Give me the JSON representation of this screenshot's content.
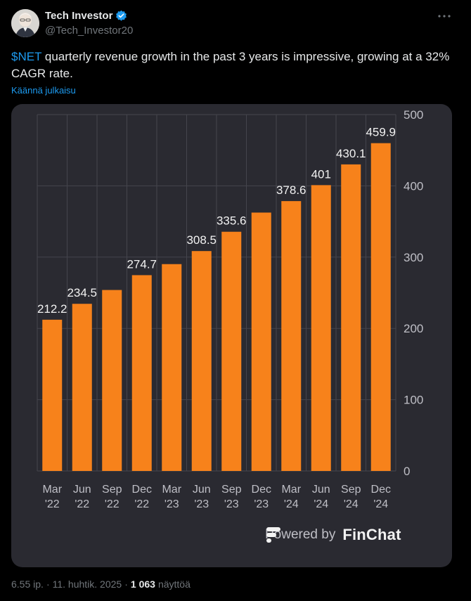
{
  "author": {
    "name": "Tech Investor",
    "handle": "@Tech_Investor20",
    "verified": true,
    "avatar_icon": "person-avatar-icon"
  },
  "tweet": {
    "cashtag": "$NET",
    "text_rest": " quarterly revenue growth in the past 3 years is impressive, growing at a 32% CAGR rate.",
    "translate_label": "Käännä julkaisu"
  },
  "chart_data": {
    "type": "bar",
    "categories": [
      "Mar '22",
      "Jun '22",
      "Sep '22",
      "Dec '22",
      "Mar '23",
      "Jun '23",
      "Sep '23",
      "Dec '23",
      "Mar '24",
      "Jun '24",
      "Sep '24",
      "Dec '24"
    ],
    "categories_lines": [
      [
        "Mar",
        "'22"
      ],
      [
        "Jun",
        "'22"
      ],
      [
        "Sep",
        "'22"
      ],
      [
        "Dec",
        "'22"
      ],
      [
        "Mar",
        "'23"
      ],
      [
        "Jun",
        "'23"
      ],
      [
        "Sep",
        "'23"
      ],
      [
        "Dec",
        "'23"
      ],
      [
        "Mar",
        "'24"
      ],
      [
        "Jun",
        "'24"
      ],
      [
        "Sep",
        "'24"
      ],
      [
        "Dec",
        "'24"
      ]
    ],
    "values": [
      212.2,
      234.5,
      253.9,
      274.7,
      290.2,
      308.5,
      335.6,
      362.5,
      378.6,
      401,
      430.1,
      459.9
    ],
    "labels": [
      "212.2",
      "234.5",
      "",
      "274.7",
      "",
      "308.5",
      "335.6",
      "",
      "378.6",
      "401",
      "430.1",
      "459.9"
    ],
    "ylim": [
      0,
      500
    ],
    "yticks": [
      "0",
      "100",
      "200",
      "300",
      "400",
      "500"
    ],
    "y_axis_position": "right",
    "grid": true,
    "bar_color": "#f7821b",
    "background": "#2a2a31"
  },
  "attribution": {
    "powered_label": "Powered by",
    "brand": "FinChat"
  },
  "meta": {
    "time": "6.55 ip.",
    "separator": "·",
    "date": "11. huhtik. 2025",
    "views_count": "1 063",
    "views_label": "näyttöä"
  }
}
